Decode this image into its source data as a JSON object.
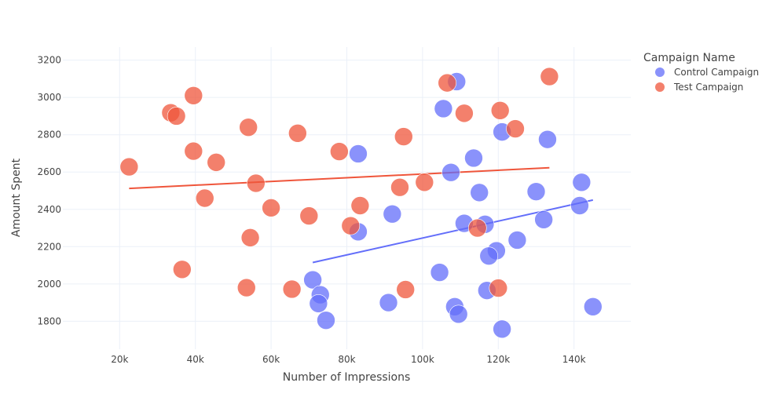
{
  "chart_data": {
    "type": "scatter",
    "title": "",
    "xlabel": "Number of Impressions",
    "ylabel": "Amount Spent",
    "xlim": [
      5000,
      155000
    ],
    "ylim": [
      1650,
      3270
    ],
    "xticks": [
      20000,
      40000,
      60000,
      80000,
      100000,
      120000,
      140000
    ],
    "xtick_labels": [
      "20k",
      "40k",
      "60k",
      "80k",
      "100k",
      "120k",
      "140k"
    ],
    "yticks": [
      1800,
      2000,
      2200,
      2400,
      2600,
      2800,
      3000,
      3200
    ],
    "ytick_labels": [
      "1800",
      "2000",
      "2200",
      "2400",
      "2600",
      "2800",
      "3000",
      "3200"
    ],
    "grid": true,
    "legend": {
      "title": "Campaign Name",
      "placement": "top-right"
    },
    "series": [
      {
        "name": "Control Campaign",
        "color": "#636efa",
        "points": [
          [
            109000,
            3085
          ],
          [
            105500,
            2940
          ],
          [
            121000,
            2815
          ],
          [
            133000,
            2775
          ],
          [
            83000,
            2698
          ],
          [
            113500,
            2675
          ],
          [
            107500,
            2598
          ],
          [
            142000,
            2545
          ],
          [
            115000,
            2490
          ],
          [
            130000,
            2495
          ],
          [
            92000,
            2375
          ],
          [
            141500,
            2420
          ],
          [
            132000,
            2345
          ],
          [
            111000,
            2325
          ],
          [
            116500,
            2320
          ],
          [
            125000,
            2235
          ],
          [
            83000,
            2280
          ],
          [
            119500,
            2178
          ],
          [
            117500,
            2150
          ],
          [
            104500,
            2062
          ],
          [
            71000,
            2022
          ],
          [
            73000,
            1942
          ],
          [
            117000,
            1965
          ],
          [
            72500,
            1895
          ],
          [
            91000,
            1900
          ],
          [
            108500,
            1878
          ],
          [
            145000,
            1878
          ],
          [
            109500,
            1838
          ],
          [
            74500,
            1805
          ],
          [
            121000,
            1758
          ]
        ],
        "trendline": [
          [
            71000,
            2115
          ],
          [
            145000,
            2450
          ]
        ]
      },
      {
        "name": "Test Campaign",
        "color": "#ef553b",
        "points": [
          [
            133500,
            3112
          ],
          [
            106500,
            3078
          ],
          [
            39500,
            3010
          ],
          [
            33500,
            2918
          ],
          [
            35000,
            2900
          ],
          [
            111000,
            2915
          ],
          [
            120500,
            2930
          ],
          [
            54000,
            2840
          ],
          [
            124500,
            2832
          ],
          [
            67000,
            2808
          ],
          [
            95000,
            2790
          ],
          [
            39500,
            2712
          ],
          [
            78000,
            2710
          ],
          [
            45500,
            2652
          ],
          [
            22500,
            2628
          ],
          [
            56000,
            2540
          ],
          [
            100500,
            2545
          ],
          [
            94000,
            2518
          ],
          [
            42500,
            2460
          ],
          [
            60000,
            2408
          ],
          [
            83500,
            2420
          ],
          [
            70000,
            2365
          ],
          [
            81000,
            2312
          ],
          [
            114500,
            2300
          ],
          [
            54500,
            2248
          ],
          [
            36500,
            2078
          ],
          [
            53500,
            1980
          ],
          [
            65500,
            1972
          ],
          [
            95500,
            1970
          ],
          [
            120000,
            1978
          ]
        ],
        "trendline": [
          [
            22500,
            2512
          ],
          [
            133500,
            2623
          ]
        ]
      }
    ]
  }
}
